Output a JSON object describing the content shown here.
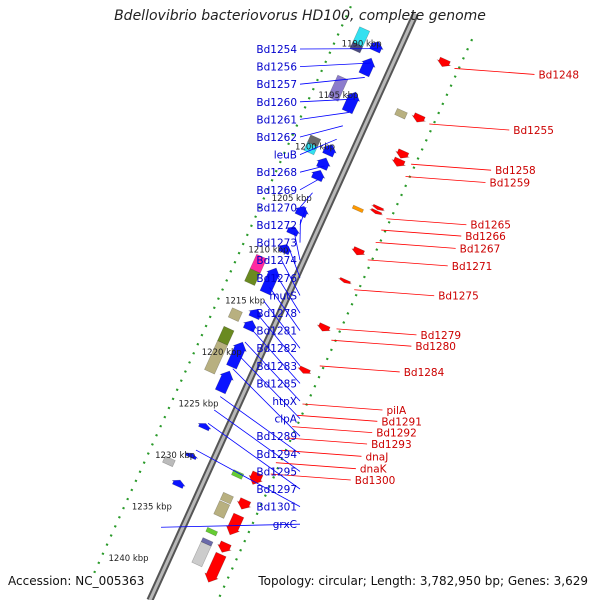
{
  "title": "Bdellovibrio bacteriovorus HD100, complete genome",
  "accession": "Accession: NC_005363",
  "topology": "Topology: circular; Length: 3,782,950 bp; Genes: 3,629",
  "colors": {
    "backbone": "#888888",
    "left_label": "#0000cc",
    "right_label": "#cc0000",
    "left_line": "#0000ff",
    "right_line": "#ff0000",
    "tick": "#2a9a2a"
  },
  "kbp_ticks": [
    {
      "label": "1190 kbp",
      "pos": 1190
    },
    {
      "label": "1195 kbp",
      "pos": 1195
    },
    {
      "label": "1200 kbp",
      "pos": 1200
    },
    {
      "label": "1205 kbp",
      "pos": 1205
    },
    {
      "label": "1210 kbp",
      "pos": 1210
    },
    {
      "label": "1215 kbp",
      "pos": 1215
    },
    {
      "label": "1220 kbp",
      "pos": 1220
    },
    {
      "label": "1225 kbp",
      "pos": 1225
    },
    {
      "label": "1230 kbp",
      "pos": 1230
    },
    {
      "label": "1235 kbp",
      "pos": 1235
    },
    {
      "label": "1240 kbp",
      "pos": 1240
    }
  ],
  "left_genes": [
    {
      "label": "Bd1254",
      "pos": 1189.2
    },
    {
      "label": "Bd1256",
      "pos": 1190.6
    },
    {
      "label": "Bd1257",
      "pos": 1192.0
    },
    {
      "label": "Bd1260",
      "pos": 1194.1
    },
    {
      "label": "Bd1261",
      "pos": 1195.4
    },
    {
      "label": "Bd1262",
      "pos": 1196.7
    },
    {
      "label": "leuB",
      "pos": 1198.0
    },
    {
      "label": "Bd1268",
      "pos": 1200.6
    },
    {
      "label": "Bd1269",
      "pos": 1201.9
    },
    {
      "label": "Bd1270",
      "pos": 1203.2
    },
    {
      "label": "Bd1272",
      "pos": 1204.6
    },
    {
      "label": "Bd1273",
      "pos": 1205.8
    },
    {
      "label": "Bd1274",
      "pos": 1207.1
    },
    {
      "label": "Bd1276",
      "pos": 1208.4
    },
    {
      "label": "mutS",
      "pos": 1209.8
    },
    {
      "label": "Bd1278",
      "pos": 1211.1
    },
    {
      "label": "Bd1281",
      "pos": 1212.4
    },
    {
      "label": "Bd1282",
      "pos": 1213.7
    },
    {
      "label": "Bd1283",
      "pos": 1215.0
    },
    {
      "label": "Bd1285",
      "pos": 1216.4
    },
    {
      "label": "htpX",
      "pos": 1217.7
    },
    {
      "label": "clpA",
      "pos": 1219.0
    },
    {
      "label": "Bd1289",
      "pos": 1220.3
    },
    {
      "label": "Bd1294",
      "pos": 1223.0
    },
    {
      "label": "Bd1295",
      "pos": 1224.3
    },
    {
      "label": "Bd1297",
      "pos": 1225.6
    },
    {
      "label": "Bd1301",
      "pos": 1228.2
    },
    {
      "label": "grxC",
      "pos": 1235.7
    }
  ],
  "right_genes": [
    {
      "label": "Bd1248",
      "pos": 1188.0
    },
    {
      "label": "Bd1255",
      "pos": 1193.4
    },
    {
      "label": "Bd1258",
      "pos": 1197.3
    },
    {
      "label": "Bd1259",
      "pos": 1198.5
    },
    {
      "label": "Bd1265",
      "pos": 1202.6
    },
    {
      "label": "Bd1266",
      "pos": 1203.7
    },
    {
      "label": "Bd1267",
      "pos": 1204.9
    },
    {
      "label": "Bd1271",
      "pos": 1206.6
    },
    {
      "label": "Bd1275",
      "pos": 1209.5
    },
    {
      "label": "Bd1279",
      "pos": 1213.3
    },
    {
      "label": "Bd1280",
      "pos": 1214.4
    },
    {
      "label": "Bd1284",
      "pos": 1216.9
    },
    {
      "label": "pilA",
      "pos": 1220.6
    },
    {
      "label": "Bd1291",
      "pos": 1221.7
    },
    {
      "label": "Bd1292",
      "pos": 1222.8
    },
    {
      "label": "Bd1293",
      "pos": 1223.9
    },
    {
      "label": "dnaJ",
      "pos": 1225.1
    },
    {
      "label": "dnaK",
      "pos": 1226.3
    },
    {
      "label": "Bd1300",
      "pos": 1227.4
    }
  ],
  "features": [
    {
      "track": "fwd_cds",
      "kind": "arrow",
      "color": "#0b14ff",
      "start": 1188.6,
      "end": 1189.5
    },
    {
      "track": "fwd_cds",
      "kind": "arrow",
      "color": "#0b14ff",
      "start": 1190.2,
      "end": 1191.8
    },
    {
      "track": "fwd_cds",
      "kind": "arrow",
      "color": "#0b14ff",
      "start": 1193.5,
      "end": 1195.4
    },
    {
      "track": "fwd_cds",
      "kind": "arrow",
      "color": "#0b14ff",
      "start": 1198.6,
      "end": 1199.6
    },
    {
      "track": "fwd_cds",
      "kind": "arrow",
      "color": "#0b14ff",
      "start": 1199.9,
      "end": 1200.9
    },
    {
      "track": "fwd_cds",
      "kind": "arrow",
      "color": "#0b14ff",
      "start": 1201.1,
      "end": 1202.0
    },
    {
      "track": "fwd_cds",
      "kind": "arrow",
      "color": "#0b14ff",
      "start": 1204.6,
      "end": 1205.5
    },
    {
      "track": "fwd_cds",
      "kind": "arrow",
      "color": "#0b14ff",
      "start": 1206.6,
      "end": 1207.3
    },
    {
      "track": "fwd_cds",
      "kind": "arrow",
      "color": "#0b14ff",
      "start": 1208.3,
      "end": 1209.1
    },
    {
      "track": "fwd_cds",
      "kind": "arrow",
      "color": "#0b14ff",
      "start": 1210.6,
      "end": 1213.0
    },
    {
      "track": "fwd_cds",
      "kind": "arrow",
      "color": "#0b14ff",
      "start": 1214.6,
      "end": 1215.4
    },
    {
      "track": "fwd_cds",
      "kind": "arrow",
      "color": "#0b14ff",
      "start": 1215.7,
      "end": 1216.6
    },
    {
      "track": "fwd_cds",
      "kind": "arrow",
      "color": "#0b14ff",
      "start": 1217.8,
      "end": 1220.2
    },
    {
      "track": "fwd_cds",
      "kind": "arrow",
      "color": "#0b14ff",
      "start": 1220.6,
      "end": 1222.6
    },
    {
      "track": "fwd_cds",
      "kind": "arrow",
      "color": "#0b14ff",
      "start": 1225.7,
      "end": 1226.2
    },
    {
      "track": "fwd_cds",
      "kind": "arrow",
      "color": "#0b14ff",
      "start": 1228.6,
      "end": 1229.0
    },
    {
      "track": "fwd_cds",
      "kind": "arrow",
      "color": "#0b14ff",
      "start": 1231.2,
      "end": 1231.8
    },
    {
      "track": "fwd_other",
      "kind": "box",
      "color": "#33e0f0",
      "start": 1188.1,
      "end": 1189.6
    },
    {
      "track": "fwd_other",
      "kind": "box",
      "color": "#4a4a80",
      "start": 1189.6,
      "end": 1190.2
    },
    {
      "track": "fwd_other",
      "kind": "box",
      "color": "#8c7ccc",
      "start": 1192.8,
      "end": 1194.9
    },
    {
      "track": "fwd_other",
      "kind": "box",
      "color": "#33e0f0",
      "start": 1199.3,
      "end": 1200.1
    },
    {
      "track": "fwd_other",
      "kind": "box",
      "color": "#6a6a6a",
      "start": 1198.6,
      "end": 1199.3
    },
    {
      "track": "fwd_other",
      "kind": "box",
      "color": "#ff2aa0",
      "start": 1210.2,
      "end": 1211.6
    },
    {
      "track": "fwd_other",
      "kind": "box",
      "color": "#6a8a20",
      "start": 1211.6,
      "end": 1212.8
    },
    {
      "track": "fwd_other",
      "kind": "box",
      "color": "#b8b080",
      "start": 1215.4,
      "end": 1216.3
    },
    {
      "track": "fwd_other",
      "kind": "box",
      "color": "#6a8a20",
      "start": 1217.2,
      "end": 1218.6
    },
    {
      "track": "fwd_other",
      "kind": "box",
      "color": "#b8b080",
      "start": 1218.6,
      "end": 1221.4
    },
    {
      "track": "fwd_other",
      "kind": "box",
      "color": "#bbbbbb",
      "start": 1229.8,
      "end": 1230.4
    },
    {
      "track": "rev_other",
      "kind": "box",
      "color": "#b8b080",
      "start": 1193.3,
      "end": 1193.9
    },
    {
      "track": "rev_other",
      "kind": "box",
      "color": "#ff9900",
      "start": 1202.7,
      "end": 1203.0
    },
    {
      "track": "rev_other",
      "kind": "box",
      "color": "#66cc33",
      "start": 1228.4,
      "end": 1228.9
    },
    {
      "track": "rev_other",
      "kind": "box",
      "color": "#b8b080",
      "start": 1230.6,
      "end": 1231.3
    },
    {
      "track": "rev_other",
      "kind": "box",
      "color": "#b8b080",
      "start": 1231.4,
      "end": 1232.7
    },
    {
      "track": "rev_other",
      "kind": "box",
      "color": "#66cc33",
      "start": 1234.0,
      "end": 1234.4
    },
    {
      "track": "rev_other",
      "kind": "box",
      "color": "#6a6aaa",
      "start": 1235.0,
      "end": 1235.4
    },
    {
      "track": "rev_other",
      "kind": "box",
      "color": "#cccccc",
      "start": 1235.4,
      "end": 1237.4
    },
    {
      "track": "rev_cds",
      "kind": "arrow",
      "color": "#ff0000",
      "start": 1187.6,
      "end": 1188.3
    },
    {
      "track": "rev_cds",
      "kind": "arrow",
      "color": "#ff0000",
      "start": 1193.0,
      "end": 1193.7
    },
    {
      "track": "rev_cds",
      "kind": "arrow",
      "color": "#ff0000",
      "start": 1196.5,
      "end": 1197.2
    },
    {
      "track": "rev_cds",
      "kind": "arrow",
      "color": "#ff0000",
      "start": 1197.3,
      "end": 1198.0
    },
    {
      "track": "rev_cds",
      "kind": "arrow",
      "color": "#ff0000",
      "start": 1201.9,
      "end": 1202.2
    },
    {
      "track": "rev_cds",
      "kind": "arrow",
      "color": "#ff0000",
      "start": 1202.3,
      "end": 1202.6
    },
    {
      "track": "rev_cds",
      "kind": "arrow",
      "color": "#ff0000",
      "start": 1206.0,
      "end": 1206.6
    },
    {
      "track": "rev_cds",
      "kind": "arrow",
      "color": "#ff0000",
      "start": 1209.0,
      "end": 1209.3
    },
    {
      "track": "rev_cds",
      "kind": "arrow",
      "color": "#ff0000",
      "start": 1213.4,
      "end": 1214.0
    },
    {
      "track": "rev_cds",
      "kind": "arrow",
      "color": "#ff0000",
      "start": 1217.6,
      "end": 1218.1
    },
    {
      "track": "rev_cds",
      "kind": "arrow",
      "color": "#ff0000",
      "start": 1227.8,
      "end": 1228.9
    },
    {
      "track": "rev_cds",
      "kind": "arrow",
      "color": "#ff0000",
      "start": 1230.4,
      "end": 1231.3
    },
    {
      "track": "rev_cds",
      "kind": "arrow",
      "color": "#ff0000",
      "start": 1231.9,
      "end": 1233.8
    },
    {
      "track": "rev_cds",
      "kind": "arrow",
      "color": "#ff0000",
      "start": 1234.6,
      "end": 1235.5
    },
    {
      "track": "rev_cds",
      "kind": "arrow",
      "color": "#ff0000",
      "start": 1235.7,
      "end": 1238.4
    }
  ]
}
